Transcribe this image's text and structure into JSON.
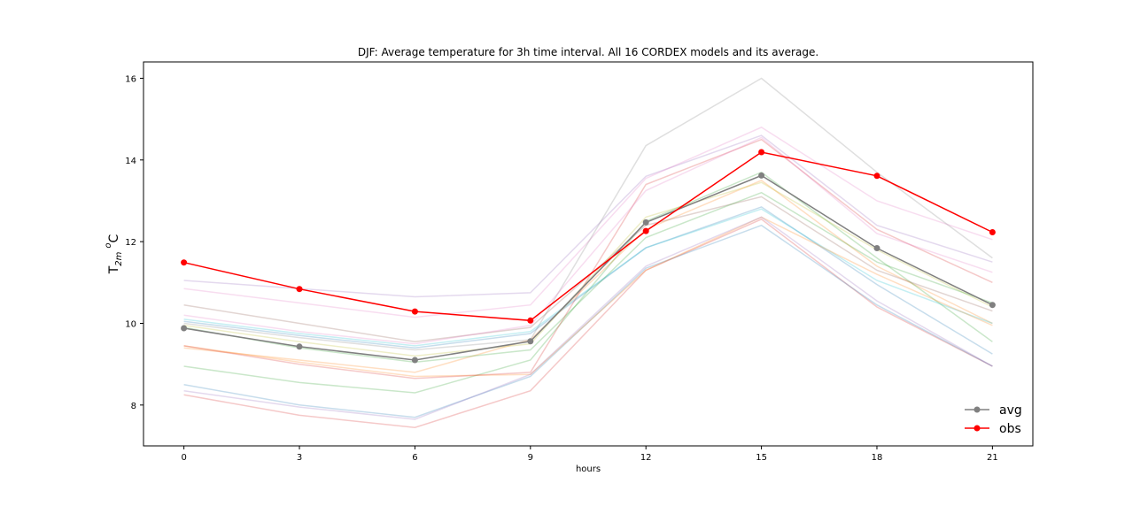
{
  "chart_data": {
    "type": "line",
    "title": "DJF: Average temperature for 3h time interval. All 16 CORDEX models and its average.",
    "xlabel": "hours",
    "ylabel": "T2m oC",
    "ylabel_parts": {
      "main": "T",
      "sub": "2m",
      "sup": "o",
      "unit": "C"
    },
    "x": [
      0,
      3,
      6,
      9,
      12,
      15,
      18,
      21
    ],
    "xlim": [
      -1.05,
      22.05
    ],
    "ylim": [
      7.0,
      16.4
    ],
    "xticks": [
      0,
      3,
      6,
      9,
      12,
      15,
      18,
      21
    ],
    "yticks": [
      8,
      10,
      12,
      14,
      16
    ],
    "grid": false,
    "legend": {
      "position": "lower-right",
      "entries": [
        "avg",
        "obs"
      ]
    },
    "models": [
      {
        "color": "#1f77b4",
        "values": [
          10.05,
          9.7,
          9.4,
          9.75,
          11.85,
          12.85,
          10.95,
          9.25
        ]
      },
      {
        "color": "#ff7f0e",
        "values": [
          9.4,
          9.1,
          8.8,
          9.6,
          12.3,
          13.5,
          11.4,
          10.0
        ]
      },
      {
        "color": "#2ca02c",
        "values": [
          8.95,
          8.55,
          8.3,
          9.1,
          12.5,
          13.7,
          11.6,
          9.55
        ]
      },
      {
        "color": "#d62728",
        "values": [
          8.25,
          7.75,
          7.45,
          8.35,
          11.3,
          12.55,
          10.4,
          8.95
        ]
      },
      {
        "color": "#9467bd",
        "values": [
          11.05,
          10.85,
          10.65,
          10.75,
          13.6,
          14.6,
          12.4,
          11.5
        ]
      },
      {
        "color": "#8c564b",
        "values": [
          10.45,
          10.0,
          9.55,
          9.9,
          12.4,
          13.1,
          11.3,
          10.3
        ]
      },
      {
        "color": "#e377c2",
        "values": [
          10.85,
          10.5,
          10.15,
          10.45,
          13.55,
          14.8,
          13.0,
          12.05
        ]
      },
      {
        "color": "#7f7f7f",
        "values": [
          10.0,
          9.65,
          9.35,
          9.6,
          14.35,
          16.0,
          13.7,
          11.6
        ]
      },
      {
        "color": "#bcbd22",
        "values": [
          9.95,
          9.55,
          9.2,
          9.5,
          12.6,
          13.45,
          11.8,
          10.4
        ]
      },
      {
        "color": "#17becf",
        "values": [
          10.1,
          9.75,
          9.45,
          9.8,
          11.85,
          12.8,
          11.05,
          10.0
        ]
      },
      {
        "color": "#1f77b4",
        "values": [
          8.5,
          8.0,
          7.7,
          8.7,
          11.35,
          12.4,
          10.45,
          8.95
        ]
      },
      {
        "color": "#ff7f0e",
        "values": [
          9.45,
          9.05,
          8.7,
          8.75,
          11.3,
          12.6,
          11.2,
          9.95
        ]
      },
      {
        "color": "#2ca02c",
        "values": [
          9.9,
          9.4,
          9.05,
          9.35,
          12.1,
          13.2,
          11.5,
          10.5
        ]
      },
      {
        "color": "#d62728",
        "values": [
          9.45,
          9.0,
          8.65,
          8.8,
          13.4,
          14.5,
          12.3,
          11.0
        ]
      },
      {
        "color": "#9467bd",
        "values": [
          8.35,
          7.95,
          7.65,
          8.75,
          11.4,
          12.6,
          10.55,
          8.95
        ]
      },
      {
        "color": "#e377c2",
        "values": [
          10.2,
          9.8,
          9.5,
          9.95,
          13.25,
          14.55,
          12.2,
          11.25
        ]
      }
    ],
    "series": [
      {
        "name": "avg",
        "color": "#808080",
        "values": [
          9.88,
          9.43,
          9.1,
          9.56,
          12.47,
          13.62,
          11.84,
          10.45
        ]
      },
      {
        "name": "obs",
        "color": "#ff0000",
        "values": [
          11.49,
          10.84,
          10.29,
          10.07,
          12.26,
          14.19,
          13.61,
          12.23
        ]
      }
    ]
  }
}
